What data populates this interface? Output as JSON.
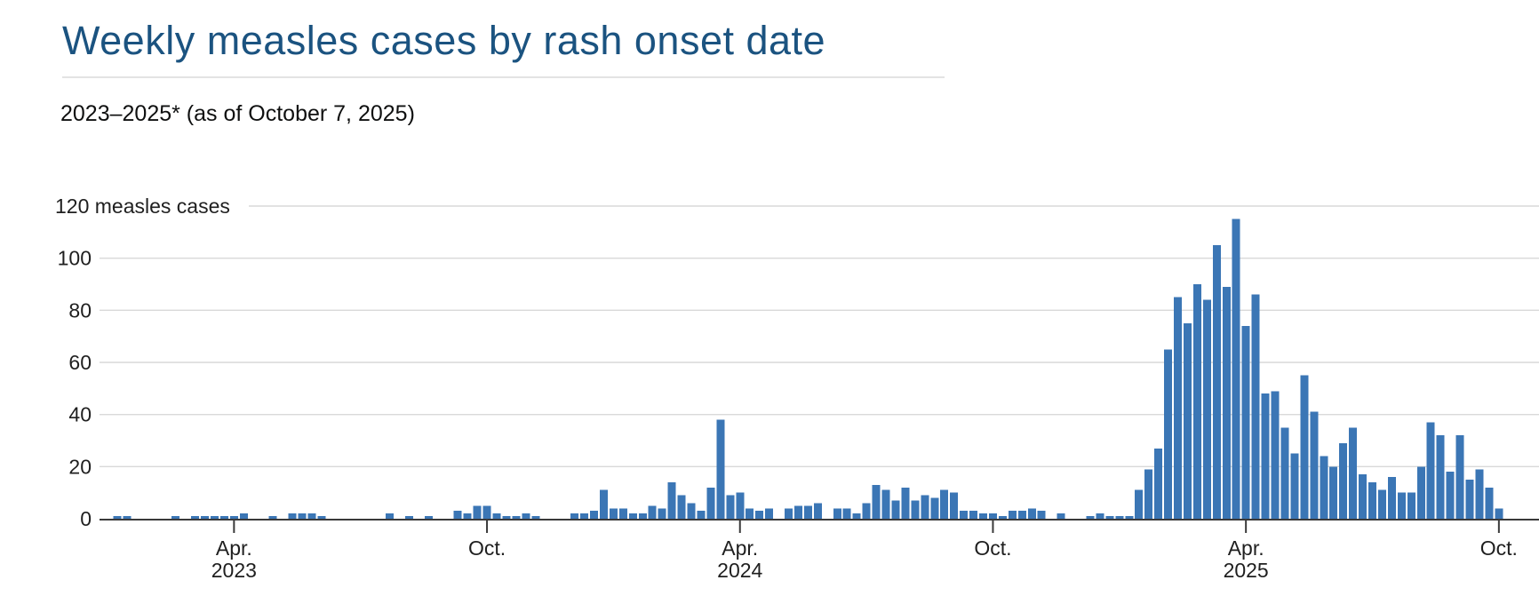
{
  "header": {
    "title": "Weekly measles cases by rash onset date",
    "subtitle": "2023–2025* (as of October 7, 2025)"
  },
  "colors": {
    "title_text": "#1b5380",
    "bar_fill": "#3b76b5",
    "gridline": "#d9d9d9",
    "axis_line": "#3a3a3a",
    "label_text": "#1f1f1f",
    "title_rule": "#e3e3e3"
  },
  "chart_data": {
    "type": "bar",
    "title": "Weekly measles cases by rash onset date",
    "subtitle": "2023–2025* (as of October 7, 2025)",
    "unit_label": "measles cases",
    "y_top_label": "120 measles cases",
    "y_ticks": [
      0,
      20,
      40,
      60,
      80,
      100,
      120
    ],
    "ylim": [
      0,
      120
    ],
    "grid": "horizontal",
    "x_unit": "week (by rash onset date)",
    "x_ticks": [
      {
        "index": 13,
        "label": "Apr.",
        "year": "2023"
      },
      {
        "index": 39,
        "label": "Oct.",
        "year": ""
      },
      {
        "index": 65,
        "label": "Apr.",
        "year": "2024"
      },
      {
        "index": 91,
        "label": "Oct.",
        "year": ""
      },
      {
        "index": 117,
        "label": "Apr.",
        "year": "2025"
      },
      {
        "index": 143,
        "label": "Oct.",
        "year": ""
      }
    ],
    "values": [
      0,
      1,
      1,
      0,
      0,
      0,
      0,
      1,
      0,
      1,
      1,
      1,
      1,
      1,
      2,
      0,
      0,
      1,
      0,
      2,
      2,
      2,
      1,
      0,
      0,
      0,
      0,
      0,
      0,
      2,
      0,
      1,
      0,
      1,
      0,
      0,
      3,
      2,
      5,
      5,
      2,
      1,
      1,
      2,
      1,
      0,
      0,
      0,
      2,
      2,
      3,
      11,
      4,
      4,
      2,
      2,
      5,
      4,
      14,
      9,
      6,
      3,
      12,
      38,
      9,
      10,
      4,
      3,
      4,
      0,
      4,
      5,
      5,
      6,
      0,
      4,
      4,
      2,
      6,
      13,
      11,
      7,
      12,
      7,
      9,
      8,
      11,
      10,
      3,
      3,
      2,
      2,
      1,
      3,
      3,
      4,
      3,
      0,
      2,
      0,
      0,
      1,
      2,
      1,
      1,
      1,
      11,
      19,
      27,
      65,
      85,
      75,
      90,
      84,
      105,
      89,
      115,
      74,
      86,
      48,
      49,
      35,
      25,
      55,
      41,
      24,
      20,
      29,
      35,
      17,
      14,
      11,
      16,
      10,
      10,
      20,
      37,
      32,
      18,
      32,
      15,
      19,
      12,
      4
    ]
  }
}
